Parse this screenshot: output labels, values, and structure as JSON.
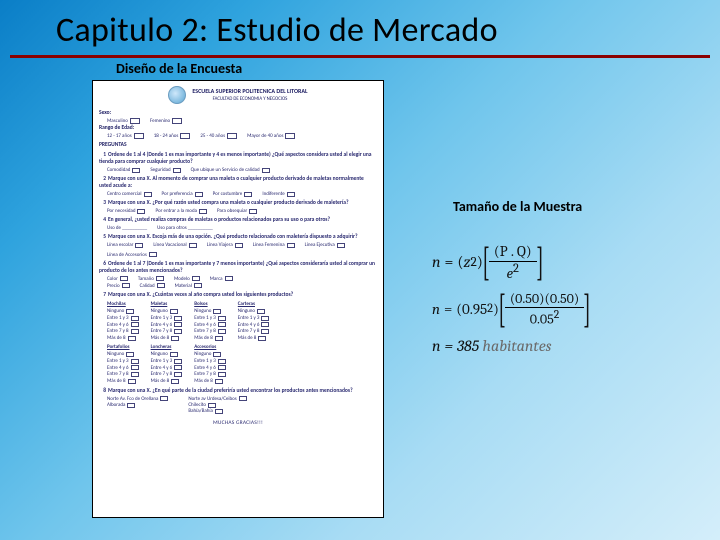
{
  "title": "Capitulo 2: Estudio de Mercado",
  "subtitle_left": "Diseño de la Encuesta",
  "subtitle_right": "Tamaño de la Muestra",
  "survey": {
    "school": "ESCUELA SUPERIOR POLITECNICA DEL LITORAL",
    "faculty": "FACULTAD DE ECONOMIA Y NEGOCIOS",
    "sexo": "Sexo:",
    "sexo_opts": [
      "Masculino",
      "Femenino"
    ],
    "edad": "Rango de Edad:",
    "edad_opts": [
      "12 - 17 años",
      "18 - 24 años",
      "25 - 40 años",
      "Mayor de 40 años"
    ],
    "preguntas": "PREGUNTAS",
    "q1": "Ordene de 1 al 4 (Donde 1 es mas importante y 4 es menos importante) ¿Qué aspectos considera usted al elegir una tienda para comprar cualquier producto?",
    "q1_opts": [
      "Comodidad",
      "Seguridad",
      "Que ubique un Servicio de calidad"
    ],
    "q2": "Marque con una X. Al momento de comprar una maleta o cualquier producto derivado de maletas normalmente usted acude a:",
    "q2_opts": [
      "Centro comercial",
      "Por preferencia",
      "Por costumbre",
      "Indiferente"
    ],
    "q3": "Marque con una X. ¿Por qué razón usted compra una maleta o cualquier producto derivado de maletería?",
    "q3_opts": [
      "Por necesidad",
      "Por entrar a la moda",
      "Para obsequiar"
    ],
    "q4": "En general, ¿usted realiza compras de maletas o productos relacionados para su uso o para otros?",
    "q4_opts": [
      "Uso de __________",
      "Uso para otros __________"
    ],
    "q5": "Marque con una X. Escoja más de una opción. ¿Qué producto relacionado con maletería dispuesto a adquirir?",
    "q5_opts": [
      "Línea escolar",
      "Línea Vacacional",
      "Línea Viajera",
      "Línea Femenina",
      "Línea Ejecutiva",
      "Línea de Accesorios"
    ],
    "q6": "Ordene de 1 al 7 (Donde 1 es mas importante y 7 menos importante) ¿Qué aspectos consideraría usted al comprar un producto de los antes mencionados?",
    "q6_opts": [
      "Color",
      "Tamaño",
      "Modelo",
      "Marca",
      "Precio",
      "Calidad",
      "Material"
    ],
    "q7": "Marque con una X. ¿Cuántas veces al año compra usted los siguientes productos?",
    "grid_cols": [
      "Mochilas",
      "Maletas",
      "Bolsos",
      "Carteras"
    ],
    "grid_rows": [
      "Ninguno",
      "Entre 1 y 3",
      "Entre 4 y 6",
      "Entre 7 y 8",
      "Más de 8"
    ],
    "grid2_cols": [
      "Portafolios",
      "Loncheras",
      "Accesorios"
    ],
    "grid2_rows": [
      "Ninguno",
      "Entre 1 y 3",
      "Entre 4 y 6",
      "Entre 7 y 8",
      "Más de 8"
    ],
    "q8": "Marque con una X. ¿En qué parte de la ciudad preferiría usted encontrar los productos antes mencionados?",
    "q8_opts1": [
      "Norte Av. Fco de Orellana",
      "Alborada"
    ],
    "q8_opts2": [
      "Norte av Urdesa/Ceibos",
      "Chilecito",
      "Bahía/Bahía"
    ],
    "thanks": "MUCHAS GRACIAS!!!"
  },
  "formulas": {
    "f1_lhs": "n",
    "f1_z": "z",
    "f1_num": "(P . Q)",
    "f1_den": "e",
    "f2_lhs": "n",
    "f2_z": "0.95",
    "f2_num": "(0.50)(0.50)",
    "f2_den": "0.05",
    "result_n": "n",
    "result_val": "385",
    "result_unit": "habitantes"
  }
}
